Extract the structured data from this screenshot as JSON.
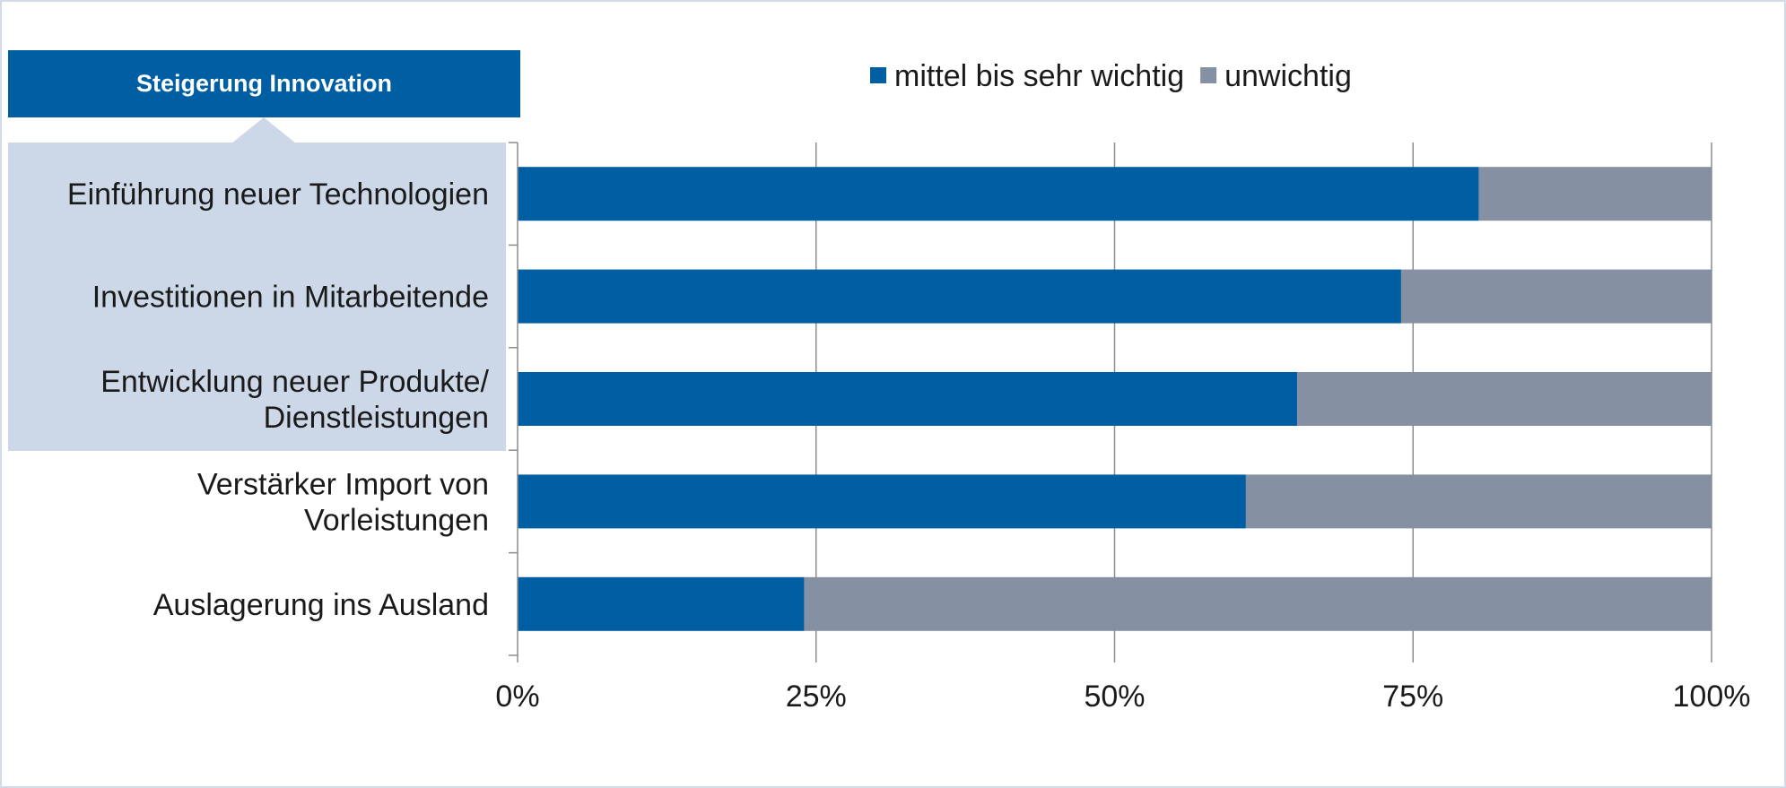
{
  "category_banner": "Steigerung Innovation",
  "chart_data": {
    "type": "bar",
    "orientation": "horizontal",
    "stacked": true,
    "categories": [
      [
        "Einführung neuer Technologien"
      ],
      [
        "Investitionen in Mitarbeitende"
      ],
      [
        "Entwicklung neuer Produkte/",
        "Dienstleistungen"
      ],
      [
        "Verstärker Import von",
        "Vorleistungen"
      ],
      [
        "Auslagerung ins Ausland"
      ]
    ],
    "series": [
      {
        "name": "mittel bis sehr wichtig",
        "color": "#005ea3",
        "values": [
          80.5,
          74,
          65.3,
          61,
          24
        ]
      },
      {
        "name": "unwichtig",
        "color": "#8591a3",
        "values": [
          19.5,
          26,
          34.7,
          39,
          76
        ]
      }
    ],
    "xlim": [
      0,
      100
    ],
    "xticks": [
      0,
      25,
      50,
      75,
      100
    ],
    "xtick_labels": [
      "0%",
      "25%",
      "50%",
      "75%",
      "100%"
    ],
    "grid": true,
    "legend_position": "top",
    "highlighted_categories": [
      0,
      1,
      2
    ]
  }
}
